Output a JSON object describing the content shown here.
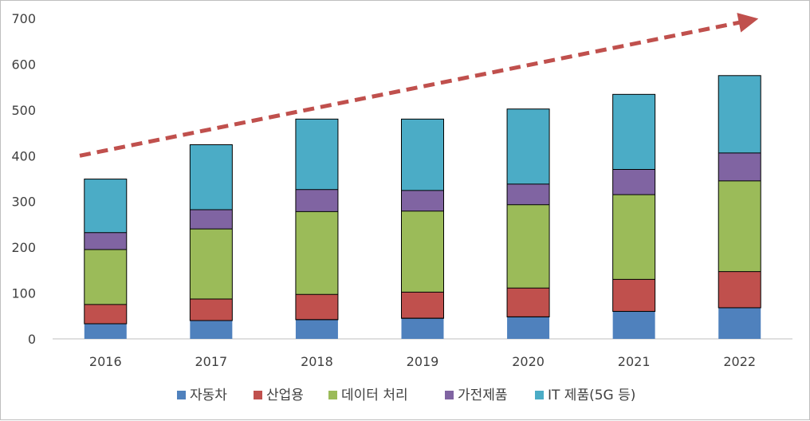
{
  "chart_data": {
    "type": "bar",
    "stacked": true,
    "categories": [
      "2016",
      "2017",
      "2018",
      "2019",
      "2020",
      "2021",
      "2022"
    ],
    "series": [
      {
        "name": "자동차",
        "color": "#4f81bd",
        "values": [
          33,
          40,
          42,
          45,
          48,
          60,
          68
        ]
      },
      {
        "name": "산업용",
        "color": "#c0504d",
        "values": [
          42,
          47,
          55,
          57,
          63,
          70,
          79
        ]
      },
      {
        "name": "데이터 처리",
        "color": "#9bbb59",
        "values": [
          120,
          153,
          181,
          177,
          182,
          185,
          198
        ]
      },
      {
        "name": "가전제품",
        "color": "#8064a2",
        "values": [
          37,
          42,
          48,
          45,
          45,
          55,
          61
        ]
      },
      {
        "name": "IT 제품(5G 등)",
        "color": "#4bacc6",
        "values": [
          117,
          142,
          154,
          156,
          164,
          164,
          169
        ]
      }
    ],
    "yticks": [
      0,
      100,
      200,
      300,
      400,
      500,
      600,
      700
    ],
    "ylim": [
      0,
      700
    ],
    "grid": false,
    "legend_position": "bottom",
    "trend_arrow": {
      "color": "#c0504d",
      "style": "dashed",
      "from_value": 400,
      "to_value": 695
    }
  }
}
